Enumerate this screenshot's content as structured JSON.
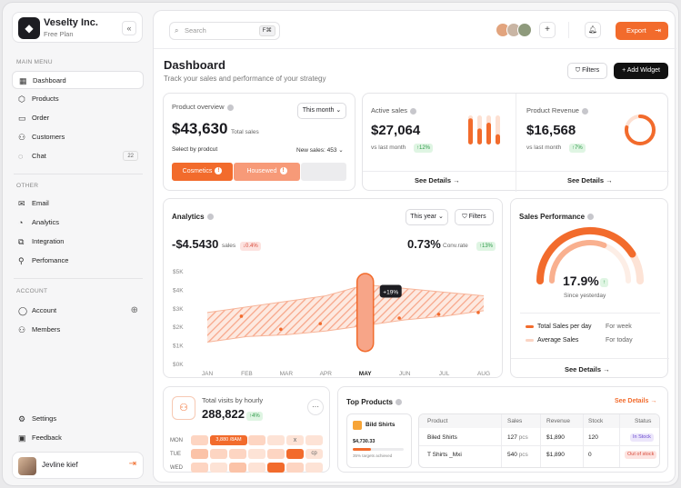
{
  "brand": {
    "name": "Veselty Inc.",
    "plan": "Free Plan",
    "collapse": "«"
  },
  "sidebar": {
    "main_label": "MAIN MENU",
    "main_items": [
      {
        "label": "Dashboard",
        "icon": "dashboard-icon",
        "glyph": "▦"
      },
      {
        "label": "Products",
        "icon": "box-icon",
        "glyph": "⬡"
      },
      {
        "label": "Order",
        "icon": "bag-icon",
        "glyph": "▭"
      },
      {
        "label": "Customers",
        "icon": "users-icon",
        "glyph": "⚇"
      },
      {
        "label": "Chat",
        "icon": "chat-icon",
        "glyph": "◌",
        "badge": "22"
      }
    ],
    "other_label": "OTHER",
    "other_items": [
      {
        "label": "Email",
        "icon": "mail-icon",
        "glyph": "✉"
      },
      {
        "label": "Analytics",
        "icon": "pie-icon",
        "glyph": "◔"
      },
      {
        "label": "Integration",
        "icon": "puzzle-icon",
        "glyph": "⧉"
      },
      {
        "label": "Perfomance",
        "icon": "performance-icon",
        "glyph": "⚲"
      }
    ],
    "account_label": "ACCOUNT",
    "account_items": [
      {
        "label": "Account",
        "icon": "user-icon",
        "glyph": "◯"
      },
      {
        "label": "Members",
        "icon": "members-icon",
        "glyph": "⚇"
      }
    ],
    "bottom_items": [
      {
        "label": "Settings",
        "icon": "gear-icon",
        "glyph": "⚙"
      },
      {
        "label": "Feedback",
        "icon": "feedback-icon",
        "glyph": "▣"
      }
    ],
    "user_name": "Jevline kief"
  },
  "topbar": {
    "search_placeholder": "Search",
    "shortcut": "F⌘",
    "plus": "+",
    "bell": "🔔︎",
    "export_label": "Export",
    "export_icon": "⇥"
  },
  "header": {
    "title": "Dashboard",
    "subtitle": "Track your sales and performance of your strategy",
    "filters": "Filters",
    "add_widget": "Add Widget",
    "filter_glyph": "⛉",
    "plus_glyph": "+"
  },
  "overview": {
    "title": "Product overview",
    "period": "This month",
    "value": "$43,630",
    "value_label": "Total sales",
    "select_label": "Select by prodcut",
    "new_sales_label": "New sales:",
    "new_sales_value": "453",
    "segments": [
      {
        "label": "Cosmetics",
        "color": "#f26b2c"
      },
      {
        "label": "Housewed",
        "color": "#f79a78"
      },
      {
        "label": "",
        "color": "#ececee"
      }
    ]
  },
  "active_sales": {
    "title": "Active sales",
    "value": "$27,064",
    "sub": "vs last month",
    "change": "↑12%",
    "see": "See Details",
    "bars": [
      0.9,
      0.55,
      0.75,
      0.35
    ]
  },
  "revenue": {
    "title": "Product Revenue",
    "value": "$16,568",
    "sub": "vs last month",
    "change": "↑7%",
    "see": "See Details",
    "ring_fraction": 0.78
  },
  "analytics": {
    "title": "Analytics",
    "period": "This year",
    "filters": "Filters",
    "value1": "-$4.5430",
    "value1_label": "sales",
    "change1": "↓0.4%",
    "value2": "0.73%",
    "value2_label": "Conv.rate",
    "change2": "↑13%",
    "tooltip": "+19%"
  },
  "chart_data": {
    "type": "area",
    "x": [
      "JAN",
      "FEB",
      "MAR",
      "APR",
      "MAY",
      "JUN",
      "JUL",
      "AUG"
    ],
    "yticks": [
      "$5K",
      "$4K",
      "$3K",
      "$2K",
      "$1K",
      "$0K"
    ],
    "ylim": [
      0,
      5000
    ],
    "upper": [
      2800,
      3100,
      3400,
      3700,
      4300,
      4100,
      3900,
      3700
    ],
    "lower": [
      1200,
      1500,
      1600,
      1800,
      2100,
      2400,
      2600,
      2900
    ],
    "dots": [
      3300,
      2600,
      1900,
      2200,
      2800,
      2500,
      2700,
      2800
    ],
    "highlight": "MAY"
  },
  "sales_perf": {
    "title": "Sales Performance",
    "value": "17.9%",
    "change": "↑",
    "sub": "Since yesterday",
    "leg1": "Total Sales per day",
    "leg1_r": "For week",
    "leg2": "Average Sales",
    "leg2_r": "For today",
    "see": "See Details",
    "outer_fraction": 0.82,
    "inner_fraction": 0.62
  },
  "visits": {
    "title": "Total visits by hourly",
    "value": "288,822",
    "change": "↑4%",
    "menu": "···",
    "days": [
      "MON",
      "TUE",
      "WED"
    ],
    "tooltip": "3,880 /8AM",
    "x_label": "x",
    "cp_label": "cp"
  },
  "top_products": {
    "title": "Top Products",
    "see": "See Details",
    "feature_name": "Bild Shirts",
    "feature_price": "$4,730.33",
    "feature_note": "35% targets achieved",
    "feature_progress": 0.35,
    "columns": [
      "Product",
      "Sales",
      "Revenue",
      "Stock",
      "Status"
    ],
    "rows": [
      {
        "product": "Biled Shirts",
        "sales": "127",
        "unit": "pcs",
        "revenue": "$1,890",
        "stock": "120",
        "status": "In Stock",
        "status_color": "#6b4ccf",
        "status_bg": "#ece6fb"
      },
      {
        "product": "T Shirts _Mxi",
        "sales": "540",
        "unit": "pcs",
        "revenue": "$1,890",
        "stock": "0",
        "status": "Out of stock",
        "status_color": "#d84a3a",
        "status_bg": "#fde3e0"
      }
    ]
  }
}
